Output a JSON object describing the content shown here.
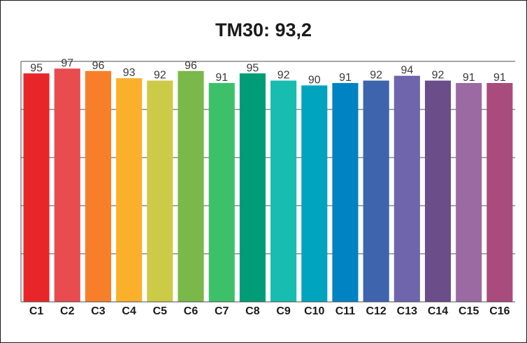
{
  "chart_data": {
    "type": "bar",
    "title": "TM30: 93,2",
    "categories": [
      "C1",
      "C2",
      "C3",
      "C4",
      "C5",
      "C6",
      "C7",
      "C8",
      "C9",
      "C10",
      "C11",
      "C12",
      "C13",
      "C14",
      "C15",
      "C16"
    ],
    "values": [
      95,
      97,
      96,
      93,
      92,
      96,
      91,
      95,
      92,
      90,
      91,
      92,
      94,
      92,
      91,
      91
    ],
    "colors": [
      "#e8262a",
      "#e84c4f",
      "#f77f29",
      "#fbb02c",
      "#cccb47",
      "#7ab84a",
      "#3cc16a",
      "#009c78",
      "#18bcb0",
      "#00a4bf",
      "#0083c3",
      "#3d64ad",
      "#6e65ad",
      "#6b4d8a",
      "#9c6aa3",
      "#a94b7c"
    ],
    "ylim": [
      0,
      100
    ],
    "grid": true,
    "legend": "none",
    "xlabel": "",
    "ylabel": ""
  }
}
